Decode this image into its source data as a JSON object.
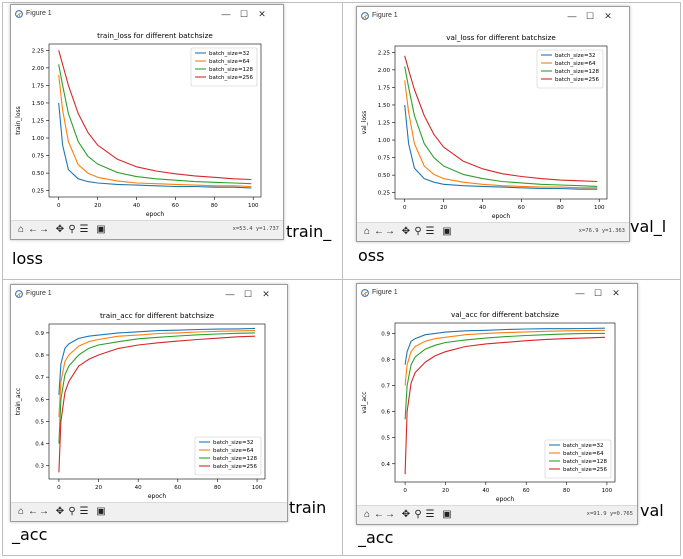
{
  "colors": {
    "series": [
      "#1f77b4",
      "#ff7f0e",
      "#2ca02c",
      "#d62728"
    ]
  },
  "panels": [
    {
      "key": "train_loss",
      "window_title": "Figure 1",
      "caption_inline": "train_",
      "caption_next": "loss",
      "coords": "x=53.4  y=1.737",
      "chart_data": {
        "type": "line",
        "title": "train_loss for different batchsize",
        "xlabel": "epoch",
        "ylabel": "train_loss",
        "xlim": [
          -5,
          104
        ],
        "ylim": [
          0.16,
          2.34
        ],
        "xticks": [
          0,
          20,
          40,
          60,
          80,
          100
        ],
        "yticks": [
          0.25,
          0.5,
          0.75,
          1.0,
          1.25,
          1.5,
          1.75,
          2.0,
          2.25
        ],
        "ytick_labels": [
          "0.25",
          "0.50",
          "0.75",
          "1.00",
          "1.25",
          "1.50",
          "1.75",
          "2.00",
          "2.25"
        ],
        "legend_position": "upper right",
        "x": [
          0,
          2,
          5,
          10,
          15,
          20,
          30,
          40,
          50,
          60,
          70,
          80,
          90,
          99
        ],
        "series": [
          {
            "name": "batch_size=32",
            "values": [
              1.5,
              0.9,
              0.55,
              0.42,
              0.38,
              0.36,
              0.34,
              0.33,
              0.32,
              0.31,
              0.31,
              0.3,
              0.3,
              0.29
            ]
          },
          {
            "name": "batch_size=64",
            "values": [
              1.9,
              1.4,
              0.95,
              0.62,
              0.5,
              0.44,
              0.39,
              0.36,
              0.35,
              0.34,
              0.33,
              0.32,
              0.32,
              0.31
            ]
          },
          {
            "name": "batch_size=128",
            "values": [
              2.05,
              1.75,
              1.35,
              0.95,
              0.74,
              0.63,
              0.51,
              0.45,
              0.42,
              0.4,
              0.38,
              0.37,
              0.36,
              0.35
            ]
          },
          {
            "name": "batch_size=256",
            "values": [
              2.25,
              2.05,
              1.75,
              1.35,
              1.08,
              0.9,
              0.7,
              0.59,
              0.53,
              0.49,
              0.46,
              0.44,
              0.42,
              0.41
            ]
          }
        ]
      }
    },
    {
      "key": "val_loss",
      "window_title": "Figure 1",
      "caption_inline": "val_l",
      "caption_next": "oss",
      "coords": "x=76.9  y=1.363",
      "chart_data": {
        "type": "line",
        "title": "val_loss for different batchsize",
        "xlabel": "epoch",
        "ylabel": "val_loss",
        "xlim": [
          -5,
          104
        ],
        "ylim": [
          0.16,
          2.34
        ],
        "xticks": [
          0,
          20,
          40,
          60,
          80,
          100
        ],
        "yticks": [
          0.25,
          0.5,
          0.75,
          1.0,
          1.25,
          1.5,
          1.75,
          2.0,
          2.25
        ],
        "ytick_labels": [
          "0.25",
          "0.50",
          "0.75",
          "1.00",
          "1.25",
          "1.50",
          "1.75",
          "2.00",
          "2.25"
        ],
        "legend_position": "upper right",
        "x": [
          0,
          2,
          5,
          10,
          15,
          20,
          30,
          40,
          50,
          60,
          70,
          80,
          90,
          99
        ],
        "series": [
          {
            "name": "batch_size=32",
            "values": [
              1.5,
              0.95,
              0.6,
              0.45,
              0.4,
              0.37,
              0.35,
              0.34,
              0.33,
              0.32,
              0.31,
              0.31,
              0.3,
              0.3
            ]
          },
          {
            "name": "batch_size=64",
            "values": [
              1.85,
              1.4,
              0.95,
              0.63,
              0.51,
              0.45,
              0.4,
              0.37,
              0.35,
              0.34,
              0.33,
              0.33,
              0.32,
              0.32
            ]
          },
          {
            "name": "batch_size=128",
            "values": [
              2.05,
              1.75,
              1.35,
              0.95,
              0.75,
              0.63,
              0.51,
              0.45,
              0.41,
              0.39,
              0.37,
              0.36,
              0.35,
              0.34
            ]
          },
          {
            "name": "batch_size=256",
            "values": [
              2.2,
              2.0,
              1.72,
              1.35,
              1.08,
              0.9,
              0.7,
              0.59,
              0.52,
              0.48,
              0.45,
              0.43,
              0.42,
              0.41
            ]
          }
        ]
      }
    },
    {
      "key": "train_acc",
      "window_title": "Figure 1",
      "caption_inline": "train",
      "caption_next": "_acc",
      "coords": "",
      "chart_data": {
        "type": "line",
        "title": "train_acc for different batchsize",
        "xlabel": "epoch",
        "ylabel": "train_acc",
        "xlim": [
          -5,
          104
        ],
        "ylim": [
          0.24,
          0.94
        ],
        "xticks": [
          0,
          20,
          40,
          60,
          80,
          100
        ],
        "yticks": [
          0.3,
          0.4,
          0.5,
          0.6,
          0.7,
          0.8,
          0.9
        ],
        "ytick_labels": [
          "0.3",
          "0.4",
          "0.5",
          "0.6",
          "0.7",
          "0.8",
          "0.9"
        ],
        "legend_position": "lower right",
        "x": [
          0,
          1,
          3,
          5,
          10,
          15,
          20,
          30,
          40,
          50,
          60,
          70,
          80,
          90,
          99
        ],
        "series": [
          {
            "name": "batch_size=32",
            "values": [
              0.62,
              0.76,
              0.83,
              0.85,
              0.875,
              0.885,
              0.89,
              0.9,
              0.905,
              0.91,
              0.912,
              0.915,
              0.917,
              0.918,
              0.92
            ]
          },
          {
            "name": "batch_size=64",
            "values": [
              0.52,
              0.68,
              0.77,
              0.8,
              0.84,
              0.86,
              0.87,
              0.885,
              0.89,
              0.897,
              0.9,
              0.904,
              0.907,
              0.909,
              0.91
            ]
          },
          {
            "name": "batch_size=128",
            "values": [
              0.4,
              0.6,
              0.71,
              0.75,
              0.8,
              0.83,
              0.845,
              0.86,
              0.873,
              0.88,
              0.886,
              0.891,
              0.895,
              0.898,
              0.9
            ]
          },
          {
            "name": "batch_size=256",
            "values": [
              0.27,
              0.5,
              0.63,
              0.68,
              0.75,
              0.78,
              0.8,
              0.83,
              0.845,
              0.855,
              0.863,
              0.87,
              0.876,
              0.882,
              0.885
            ]
          }
        ]
      }
    },
    {
      "key": "val_acc",
      "window_title": "Figure 1",
      "caption_inline": "val",
      "caption_next": "_acc",
      "coords": "x=91.9  y=0.765",
      "chart_data": {
        "type": "line",
        "title": "val_acc for different batchsize",
        "xlabel": "epoch",
        "ylabel": "val_acc",
        "xlim": [
          -5,
          104
        ],
        "ylim": [
          0.33,
          0.94
        ],
        "xticks": [
          0,
          20,
          40,
          60,
          80,
          100
        ],
        "yticks": [
          0.4,
          0.5,
          0.6,
          0.7,
          0.8,
          0.9
        ],
        "ytick_labels": [
          "0.4",
          "0.5",
          "0.6",
          "0.7",
          "0.8",
          "0.9"
        ],
        "legend_position": "lower right",
        "x": [
          0,
          1,
          3,
          5,
          10,
          15,
          20,
          30,
          40,
          50,
          60,
          70,
          80,
          90,
          99
        ],
        "series": [
          {
            "name": "batch_size=32",
            "values": [
              0.78,
              0.83,
              0.87,
              0.88,
              0.895,
              0.9,
              0.905,
              0.91,
              0.912,
              0.915,
              0.917,
              0.918,
              0.918,
              0.919,
              0.92
            ]
          },
          {
            "name": "batch_size=64",
            "values": [
              0.7,
              0.78,
              0.83,
              0.85,
              0.87,
              0.88,
              0.885,
              0.895,
              0.9,
              0.903,
              0.906,
              0.908,
              0.91,
              0.911,
              0.912
            ]
          },
          {
            "name": "batch_size=128",
            "values": [
              0.57,
              0.7,
              0.78,
              0.81,
              0.84,
              0.855,
              0.865,
              0.875,
              0.882,
              0.888,
              0.892,
              0.895,
              0.898,
              0.9,
              0.9
            ]
          },
          {
            "name": "batch_size=256",
            "values": [
              0.36,
              0.6,
              0.71,
              0.75,
              0.79,
              0.815,
              0.83,
              0.85,
              0.86,
              0.866,
              0.872,
              0.877,
              0.88,
              0.883,
              0.885
            ]
          }
        ]
      }
    }
  ]
}
